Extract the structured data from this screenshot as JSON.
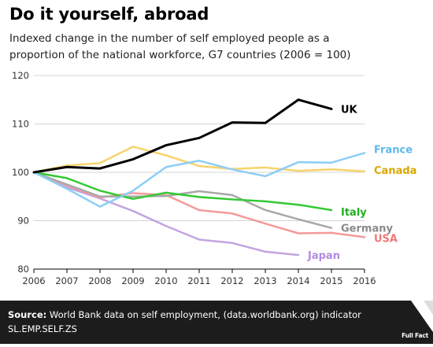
{
  "header": {
    "title": "Do it yourself, abroad",
    "subtitle": "Indexed change in the number of self employed people as a proportion of the national workforce, G7 countries (2006 = 100)"
  },
  "footer": {
    "source_label": "Source:",
    "source_text": "World Bank data on self employment, (data.worldbank.org) indicator SL.EMP.SELF.ZS",
    "logo_text": "Full Fact"
  },
  "chart_data": {
    "type": "line",
    "x": [
      2006,
      2007,
      2008,
      2009,
      2010,
      2011,
      2012,
      2013,
      2014,
      2015,
      2016
    ],
    "xlim": [
      2006,
      2016
    ],
    "ylim": [
      80,
      120
    ],
    "yticks": [
      80,
      90,
      100,
      110,
      120
    ],
    "grid": "horizontal",
    "series": [
      {
        "name": "UK",
        "color": "#000000",
        "width": 3,
        "values": [
          100,
          101.1,
          100.8,
          102.7,
          105.6,
          107.1,
          110.3,
          110.2,
          115.0,
          113.1,
          null
        ]
      },
      {
        "name": "France",
        "color": "#8dcdf6",
        "width": 2.5,
        "values": [
          100,
          96.6,
          92.9,
          96.2,
          101.1,
          102.4,
          100.6,
          99.2,
          102.1,
          102.0,
          104.0
        ]
      },
      {
        "name": "Canada",
        "color": "#f6d46a",
        "width": 2.5,
        "values": [
          100,
          101.4,
          101.9,
          105.3,
          103.5,
          101.3,
          100.7,
          101.0,
          100.3,
          100.6,
          100.2
        ]
      },
      {
        "name": "Italy",
        "color": "#33c933",
        "width": 2.5,
        "values": [
          100,
          98.8,
          96.2,
          94.5,
          95.8,
          94.9,
          94.4,
          94.0,
          93.3,
          92.2,
          null
        ]
      },
      {
        "name": "Germany",
        "color": "#a8a8a8",
        "width": 2.5,
        "values": [
          100,
          97.5,
          95.0,
          95.0,
          95.1,
          96.1,
          95.3,
          92.2,
          90.3,
          88.5,
          null
        ]
      },
      {
        "name": "USA",
        "color": "#f49a9a",
        "width": 2.5,
        "values": [
          100,
          97.3,
          94.8,
          95.7,
          95.3,
          92.2,
          91.5,
          89.4,
          87.4,
          87.5,
          86.6
        ]
      },
      {
        "name": "Japan",
        "color": "#c3a4e0",
        "width": 2.5,
        "values": [
          100,
          96.9,
          94.6,
          92.0,
          88.9,
          86.1,
          85.4,
          83.6,
          82.9,
          null,
          null
        ]
      }
    ],
    "labels": [
      {
        "series": "UK",
        "text": "UK",
        "color": "#000000"
      },
      {
        "series": "France",
        "text": "France",
        "color": "#5fb8ef"
      },
      {
        "series": "Canada",
        "text": "Canada",
        "color": "#d9a600"
      },
      {
        "series": "Italy",
        "text": "Italy",
        "color": "#22b022"
      },
      {
        "series": "Germany",
        "text": "Germany",
        "color": "#8a8a8a"
      },
      {
        "series": "USA",
        "text": "USA",
        "color": "#ef7777"
      },
      {
        "series": "Japan",
        "text": "Japan",
        "color": "#b38be0"
      }
    ]
  }
}
